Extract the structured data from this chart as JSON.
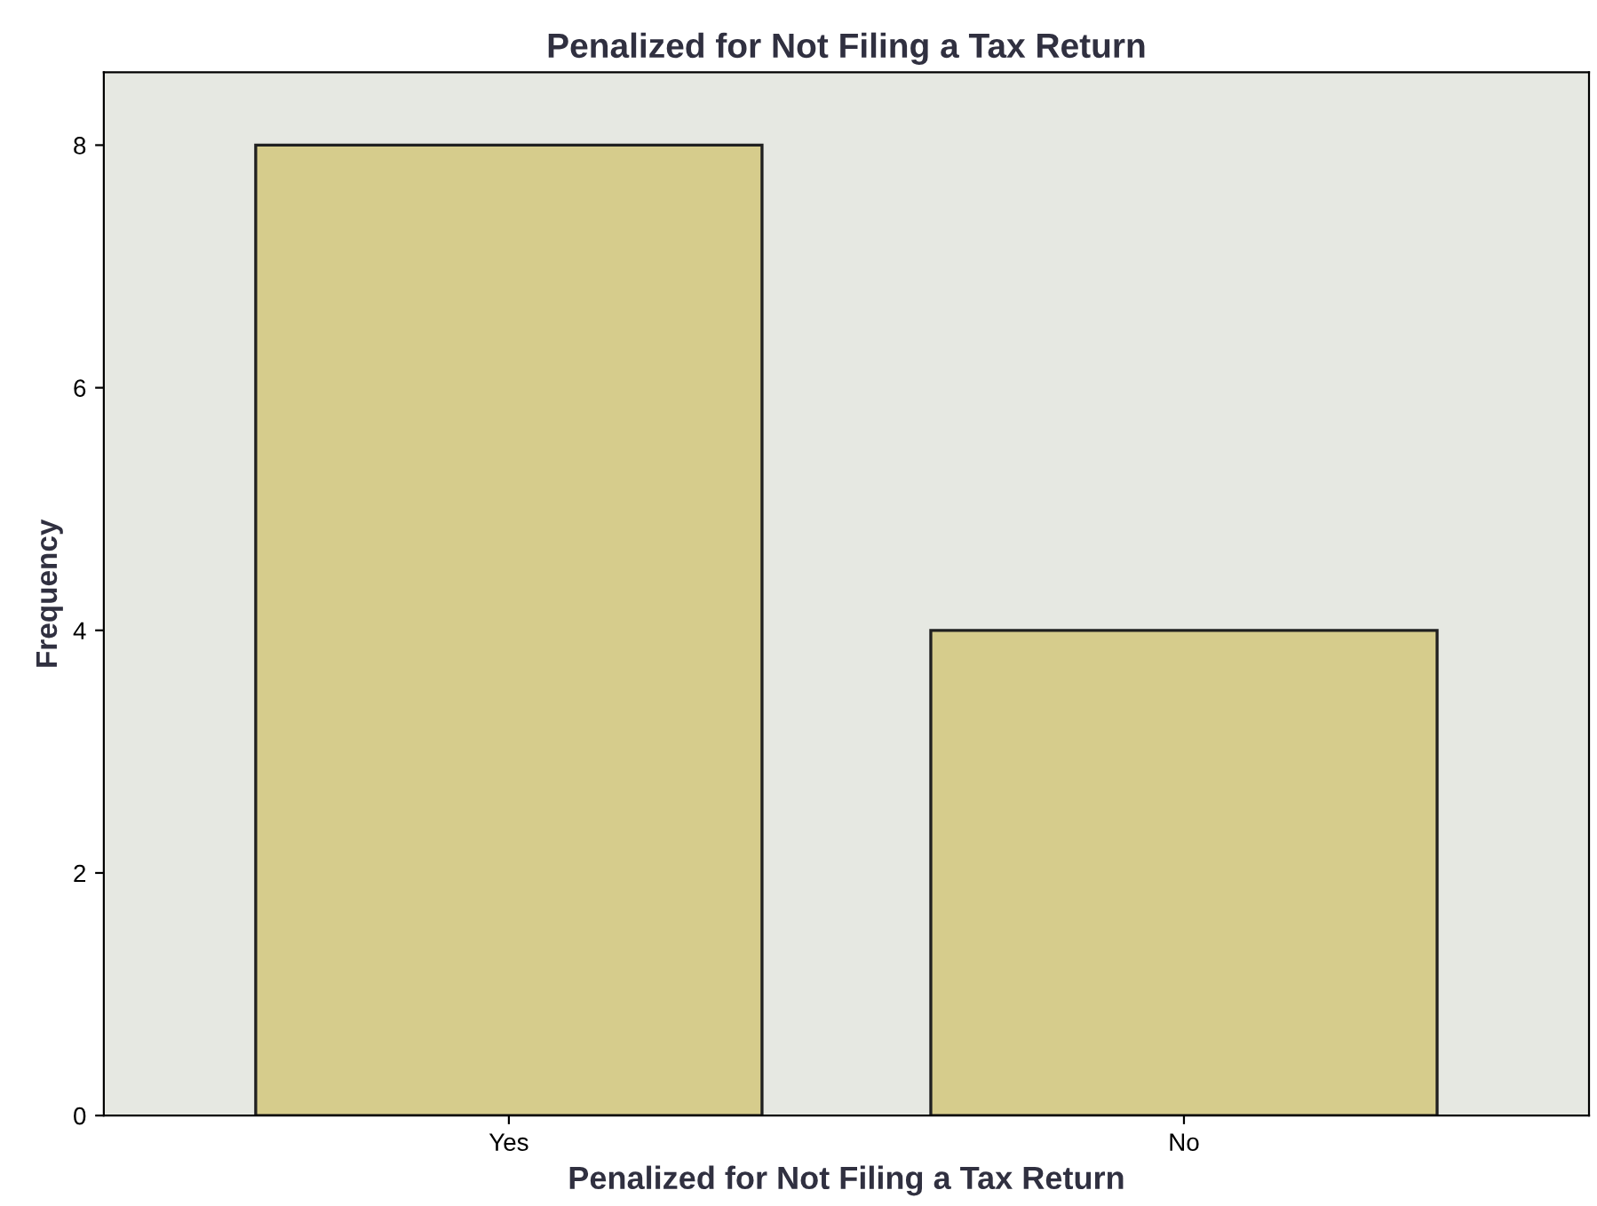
{
  "chart_data": {
    "type": "bar",
    "title": "Penalized for Not Filing a Tax Return",
    "xlabel": "Penalized for Not Filing a Tax Return",
    "ylabel": "Frequency",
    "categories": [
      "Yes",
      "No"
    ],
    "values": [
      8,
      4
    ],
    "color": "#d6cc8c",
    "ylim": [
      0,
      8.6
    ],
    "yticks": [
      0,
      2,
      4,
      6,
      8
    ],
    "grid": false
  }
}
